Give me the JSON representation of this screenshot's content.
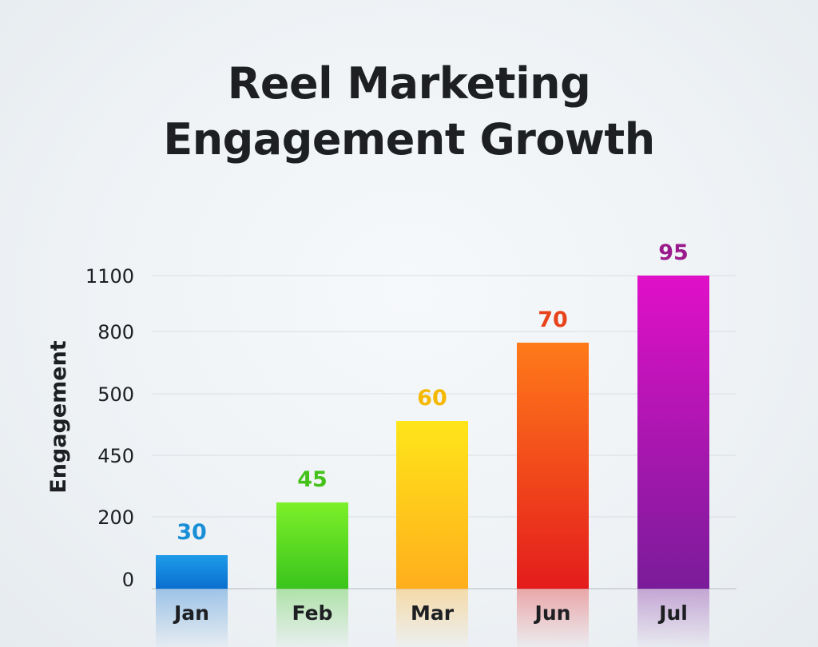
{
  "chart_data": {
    "type": "bar",
    "title_lines": [
      "Reel Marketing",
      "Engagement Growth"
    ],
    "xlabel": "",
    "ylabel": "Engagement",
    "categories": [
      "Jan",
      "Feb",
      "Mar",
      "Jun",
      "Jul"
    ],
    "values": [
      30,
      45,
      60,
      70,
      95
    ],
    "data_labels": [
      "30",
      "45",
      "60",
      "70",
      "95"
    ],
    "y_tick_labels": [
      "0",
      "200",
      "450",
      "500",
      "800",
      "1100"
    ],
    "grid": true,
    "legend": "none",
    "bar_colors": [
      {
        "top": "#1e9be8",
        "bottom": "#0a6fd0",
        "label": "#1a8fd6"
      },
      {
        "top": "#7df02a",
        "bottom": "#3ac41c",
        "label": "#44c21a"
      },
      {
        "top": "#ffe51a",
        "bottom": "#ffae1c",
        "label": "#f5b800"
      },
      {
        "top": "#ff7a1a",
        "bottom": "#e41c1c",
        "label": "#e8431a"
      },
      {
        "top": "#e010c8",
        "bottom": "#7a1c9a",
        "label": "#9a1a8c"
      }
    ]
  }
}
